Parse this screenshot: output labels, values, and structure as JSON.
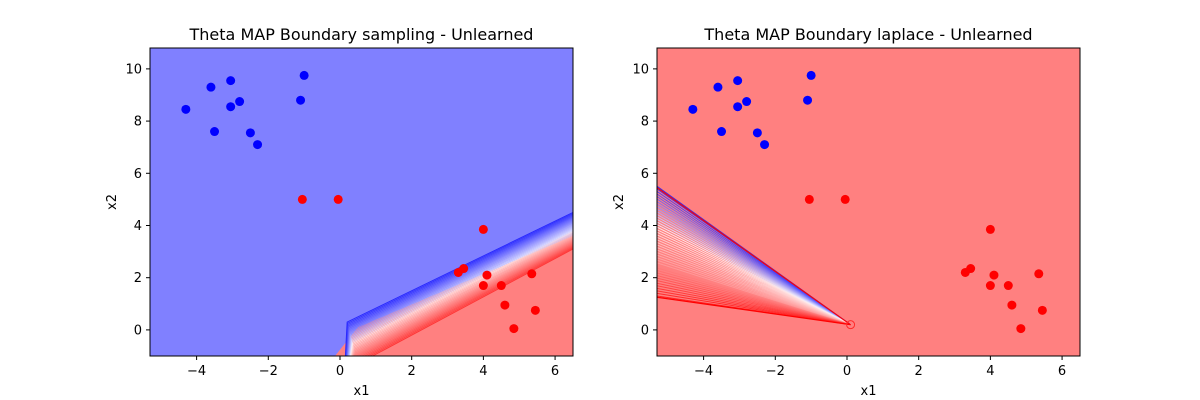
{
  "colors": {
    "blue_region": "#8080ff",
    "red_region": "#ff8080",
    "blue_point": "#0000ff",
    "red_point": "#ff0000"
  },
  "chart_data": [
    {
      "type": "scatter",
      "title": "Theta MAP Boundary sampling - Unlearned",
      "xlabel": "x1",
      "ylabel": "x2",
      "xlim": [
        -5.3,
        6.5
      ],
      "ylim": [
        -1.0,
        10.8
      ],
      "xticks": [
        -4,
        -2,
        0,
        2,
        4,
        6
      ],
      "yticks": [
        0,
        2,
        4,
        6,
        8,
        10
      ],
      "xtick_labels": [
        "−4",
        "−2",
        "0",
        "2",
        "4",
        "6"
      ],
      "ytick_labels": [
        "0",
        "2",
        "4",
        "6",
        "8",
        "10"
      ],
      "grid": false,
      "background": "decision-boundary contour: blue region above a diagonal band, red region below",
      "series": [
        {
          "color": "#0000ff",
          "points": [
            [
              -4.3,
              8.45
            ],
            [
              -3.6,
              9.3
            ],
            [
              -3.5,
              7.6
            ],
            [
              -3.05,
              9.55
            ],
            [
              -3.05,
              8.55
            ],
            [
              -2.8,
              8.75
            ],
            [
              -2.5,
              7.55
            ],
            [
              -2.3,
              7.1
            ],
            [
              -1.1,
              8.8
            ],
            [
              -1.0,
              9.75
            ]
          ]
        },
        {
          "color": "#ff0000",
          "points": [
            [
              -1.05,
              5.0
            ],
            [
              -0.05,
              5.0
            ],
            [
              3.3,
              2.2
            ],
            [
              3.45,
              2.35
            ],
            [
              4.0,
              3.85
            ],
            [
              4.0,
              1.7
            ],
            [
              4.1,
              2.1
            ],
            [
              4.5,
              1.7
            ],
            [
              4.6,
              0.95
            ],
            [
              4.85,
              0.05
            ],
            [
              5.35,
              2.15
            ],
            [
              5.45,
              0.75
            ]
          ]
        }
      ]
    },
    {
      "type": "scatter",
      "title": "Theta MAP Boundary laplace - Unlearned",
      "xlabel": "x1",
      "ylabel": "x2",
      "xlim": [
        -5.3,
        6.5
      ],
      "ylim": [
        -1.0,
        10.8
      ],
      "xticks": [
        -4,
        -2,
        0,
        2,
        4,
        6
      ],
      "yticks": [
        0,
        2,
        4,
        6,
        8,
        10
      ],
      "xtick_labels": [
        "−4",
        "−2",
        "0",
        "2",
        "4",
        "6"
      ],
      "ytick_labels": [
        "0",
        "2",
        "4",
        "6",
        "8",
        "10"
      ],
      "grid": false,
      "background": "decision-boundary contour: red region with a fan of blue/red contour lines converging at about (0.1, 0.2)",
      "series": [
        {
          "color": "#0000ff",
          "points": [
            [
              -4.3,
              8.45
            ],
            [
              -3.6,
              9.3
            ],
            [
              -3.5,
              7.6
            ],
            [
              -3.05,
              9.55
            ],
            [
              -3.05,
              8.55
            ],
            [
              -2.8,
              8.75
            ],
            [
              -2.5,
              7.55
            ],
            [
              -2.3,
              7.1
            ],
            [
              -1.1,
              8.8
            ],
            [
              -1.0,
              9.75
            ]
          ]
        },
        {
          "color": "#ff0000",
          "points": [
            [
              -1.05,
              5.0
            ],
            [
              -0.05,
              5.0
            ],
            [
              3.3,
              2.2
            ],
            [
              3.45,
              2.35
            ],
            [
              4.0,
              3.85
            ],
            [
              4.0,
              1.7
            ],
            [
              4.1,
              2.1
            ],
            [
              4.5,
              1.7
            ],
            [
              4.6,
              0.95
            ],
            [
              4.85,
              0.05
            ],
            [
              5.35,
              2.15
            ],
            [
              5.45,
              0.75
            ]
          ]
        }
      ]
    }
  ]
}
